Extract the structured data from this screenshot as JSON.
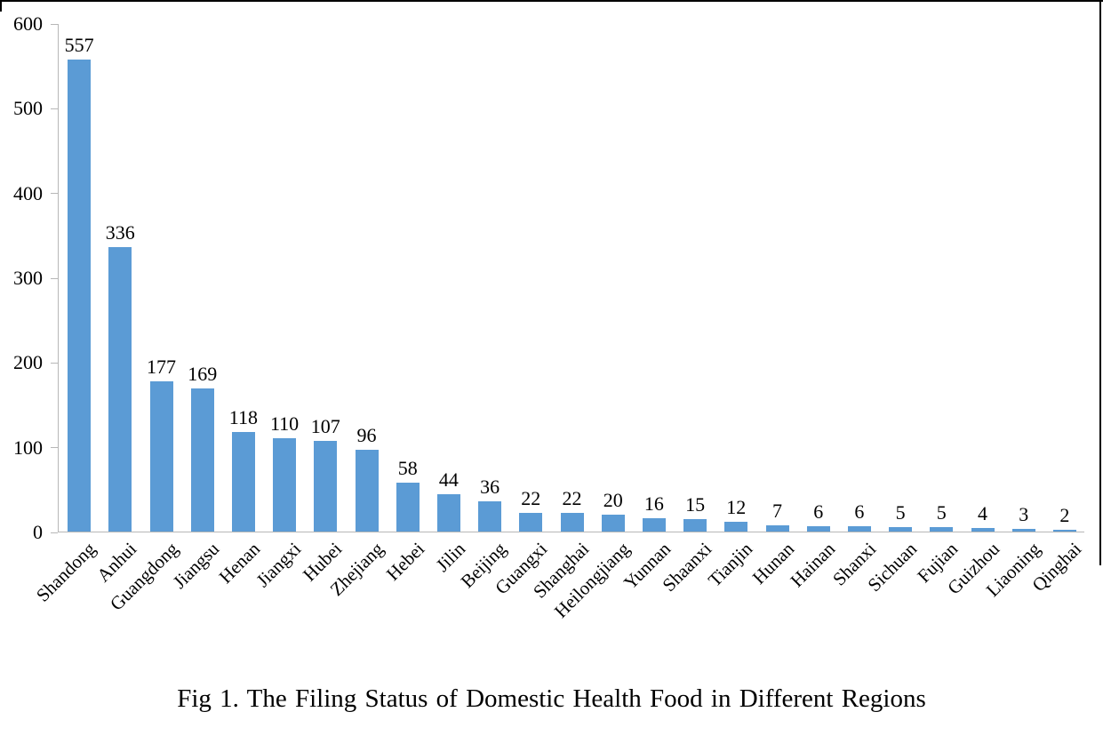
{
  "figure": {
    "caption": "Fig 1. The Filing Status of Domestic Health Food in Different Regions"
  },
  "chart_data": {
    "type": "bar",
    "title": "Fig 1. The Filing Status of Domestic Health Food in Different Regions",
    "categories": [
      "Shandong",
      "Anhui",
      "Guangdong",
      "Jiangsu",
      "Henan",
      "Jiangxi",
      "Hubei",
      "Zhejiang",
      "Hebei",
      "Jilin",
      "Beijing",
      "Guangxi",
      "Shanghai",
      "Heilongjiang",
      "Yunnan",
      "Shaanxi",
      "Tianjin",
      "Hunan",
      "Hainan",
      "Shanxi",
      "Sichuan",
      "Fujian",
      "Guizhou",
      "Liaoning",
      "Qinghai"
    ],
    "values": [
      557,
      336,
      177,
      169,
      118,
      110,
      107,
      96,
      58,
      44,
      36,
      22,
      22,
      20,
      16,
      15,
      12,
      7,
      6,
      6,
      5,
      5,
      4,
      3,
      2
    ],
    "value_labels_shown": true,
    "xlabel": "",
    "ylabel": "",
    "ylim": [
      0,
      600
    ],
    "yticks": [
      0,
      100,
      200,
      300,
      400,
      500,
      600
    ],
    "grid": false,
    "legend_position": "none",
    "bar_color": "#5B9BD5",
    "axis_color": "#b7b7b7",
    "text_color": "#000000",
    "category_label_rotation_deg": -45
  }
}
